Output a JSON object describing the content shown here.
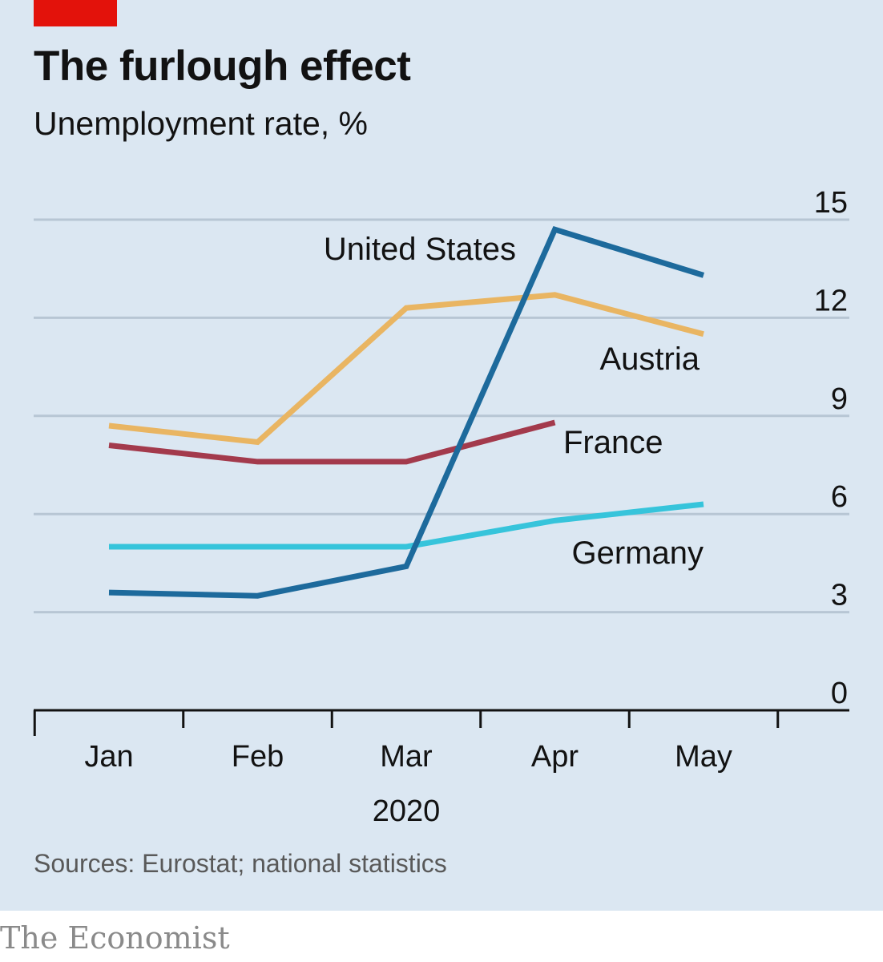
{
  "header": {
    "title": "The furlough effect",
    "subtitle": "Unemployment rate, %"
  },
  "footer": {
    "source": "Sources: Eurostat; national statistics",
    "brand": "The Economist"
  },
  "colors": {
    "background": "#dbe7f2",
    "accent": "#e3120b",
    "gridline": "#b7c6d4"
  },
  "chart_data": {
    "type": "line",
    "title": "The furlough effect",
    "subtitle": "Unemployment rate, %",
    "categories": [
      "Jan",
      "Feb",
      "Mar",
      "Apr",
      "May"
    ],
    "x_sublabel": "2020",
    "ylim": [
      0,
      15
    ],
    "yticks": [
      0,
      3,
      6,
      9,
      12,
      15
    ],
    "ytick_labels": [
      "0",
      "3",
      "6",
      "9",
      "12",
      "15"
    ],
    "grid": true,
    "legend": "direct labels beside each line",
    "series": [
      {
        "name": "Austria",
        "color": "#e9b562",
        "values": [
          8.7,
          8.2,
          12.3,
          12.7,
          11.5
        ]
      },
      {
        "name": "France",
        "color": "#a33a4c",
        "values": [
          8.1,
          7.6,
          7.6,
          8.8,
          null
        ]
      },
      {
        "name": "Germany",
        "color": "#36c4db",
        "values": [
          5.0,
          5.0,
          5.0,
          5.8,
          6.3
        ]
      },
      {
        "name": "United States",
        "color": "#1d6a9c",
        "values": [
          3.6,
          3.5,
          4.4,
          14.7,
          13.3
        ]
      }
    ]
  }
}
